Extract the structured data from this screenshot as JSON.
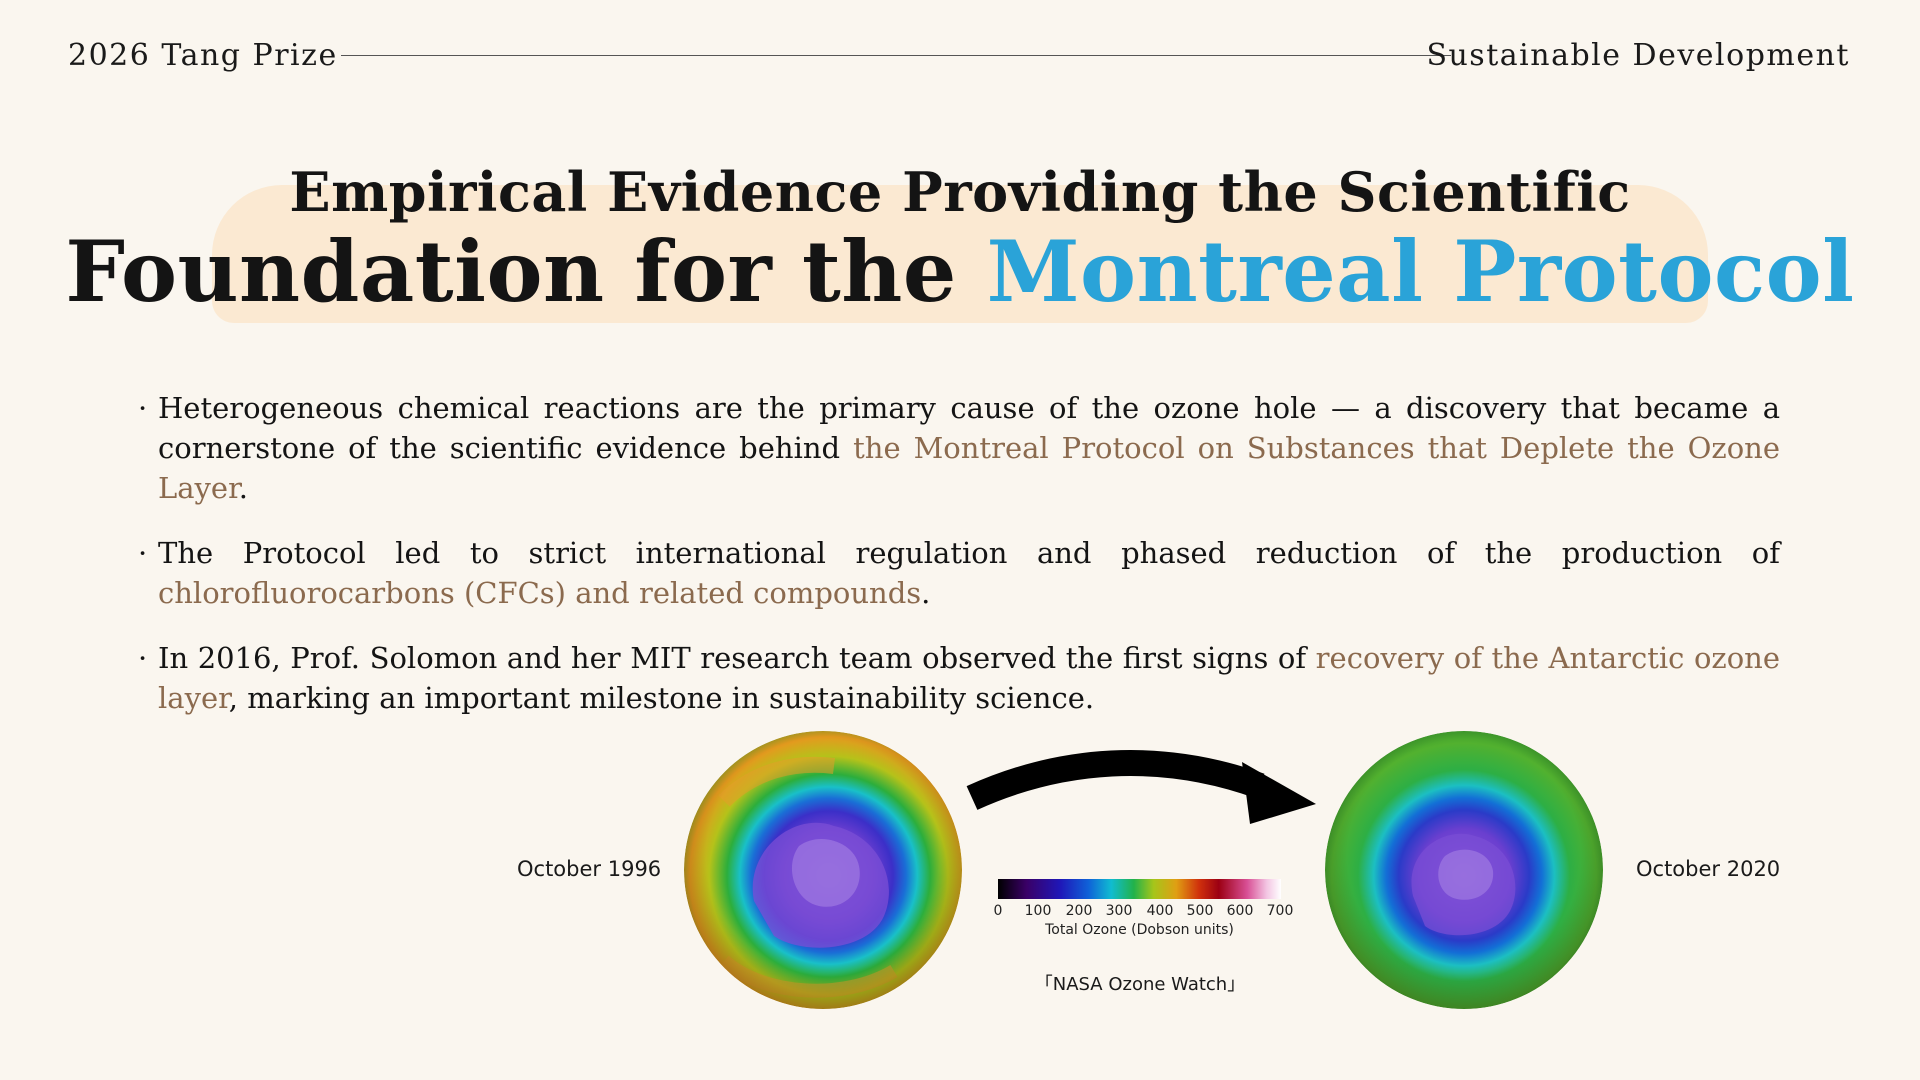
{
  "header": {
    "left": "2026 Tang Prize",
    "right": "Sustainable Development"
  },
  "title": {
    "line1": "Empirical Evidence Providing the Scientific",
    "line2_plain": "Foundation for the ",
    "line2_accent": "Montreal Protocol"
  },
  "bullets": [
    {
      "text_before": "Heterogeneous chemical reactions are the primary cause of the ozone hole — a discovery that became a cornerstone of the scientific evidence behind ",
      "highlight": "the Montreal Protocol on Substances that Deplete the Ozone Layer",
      "text_after": "."
    },
    {
      "text_before": "The Protocol led to strict international regulation and phased reduction of the production of ",
      "highlight": "chlorofluorocarbons (CFCs) and related compounds",
      "text_after": "."
    },
    {
      "text_before": "In 2016, Prof. Solomon and her MIT research team observed the first signs of ",
      "highlight": "recovery of the Antarctic ozone layer",
      "text_after": ", marking an important milestone in sustainability science."
    }
  ],
  "figure": {
    "left_label": "October 1996",
    "right_label": "October 2020",
    "colorbar_ticks": [
      "0",
      "100",
      "200",
      "300",
      "400",
      "500",
      "600",
      "700"
    ],
    "colorbar_label": "Total Ozone (Dobson units)",
    "credit": "「NASA Ozone Watch」"
  },
  "colors": {
    "background": "#faf6ef",
    "title_highlight": "#fbe9d2",
    "accent_blue": "#2aa3d8",
    "bullet_highlight": "#8b6a4e"
  },
  "icons": [
    "bullet-dot",
    "right-arrow-icon",
    "ozone-globe-1996",
    "ozone-globe-2020"
  ]
}
